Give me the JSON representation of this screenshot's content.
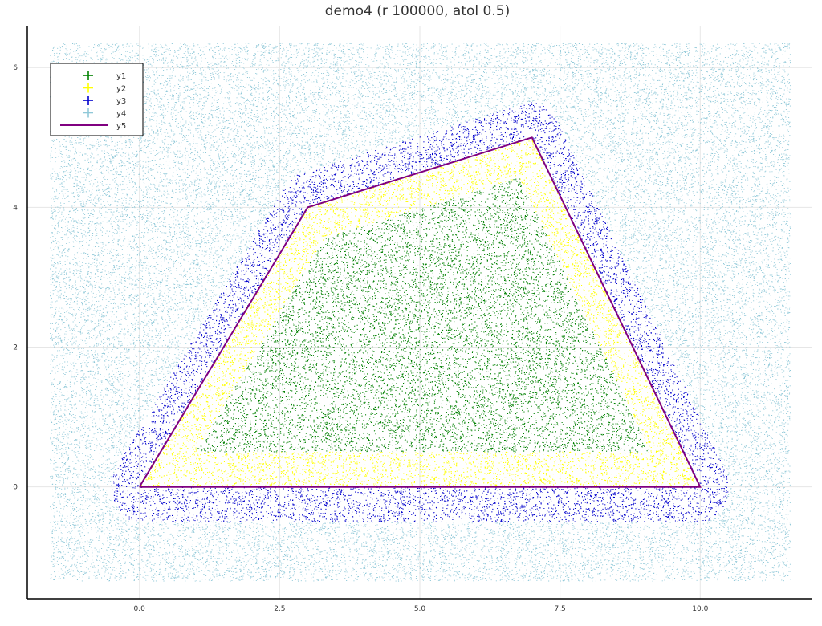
{
  "chart_data": {
    "type": "scatter",
    "title": "demo4 (r 100000, atol 0.5)",
    "xlabel": "",
    "ylabel": "",
    "xlim": [
      -2.0,
      12.0
    ],
    "ylim": [
      -1.6,
      6.6
    ],
    "xticks": [
      0.0,
      2.5,
      5.0,
      7.5,
      10.0
    ],
    "xtick_labels": [
      "0.0",
      "2.5",
      "5.0",
      "7.5",
      "10.0"
    ],
    "yticks": [
      0,
      2,
      4,
      6
    ],
    "ytick_labels": [
      "0",
      "2",
      "4",
      "6"
    ],
    "grid": true,
    "legend": "top-left",
    "polygon": [
      [
        0,
        0
      ],
      [
        3,
        4
      ],
      [
        7,
        5
      ],
      [
        10,
        0
      ]
    ],
    "atol": 0.5,
    "sample_bounds": {
      "x": [
        -1.6,
        11.6
      ],
      "y": [
        -1.35,
        6.35
      ]
    },
    "series": [
      {
        "name": "y1",
        "kind": "scatter",
        "color": "#008000",
        "region": "inside polygon, distance > atol"
      },
      {
        "name": "y2",
        "kind": "scatter",
        "color": "#ffff00",
        "region": "inside polygon, distance <= atol"
      },
      {
        "name": "y3",
        "kind": "scatter",
        "color": "#0000cc",
        "region": "outside polygon, distance <= atol"
      },
      {
        "name": "y4",
        "kind": "scatter",
        "color": "#8fc8d8",
        "region": "outside polygon, distance > atol"
      },
      {
        "name": "y5",
        "kind": "line",
        "color": "#800080",
        "region": "polygon boundary"
      }
    ]
  }
}
